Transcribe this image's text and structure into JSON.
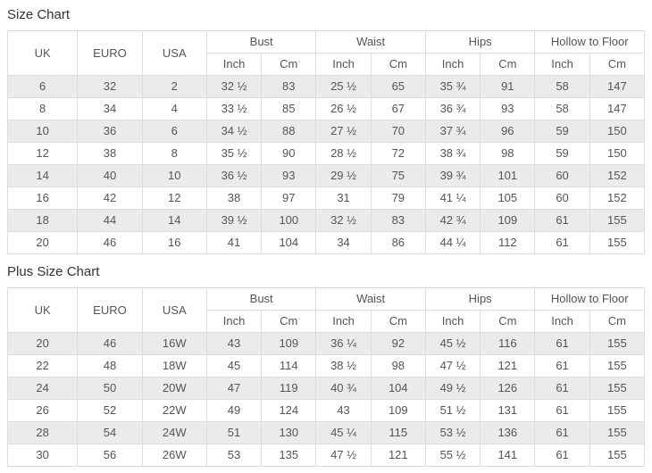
{
  "colors": {
    "background": "#ffffff",
    "row_stripe": "#ebebeb",
    "border": "#dddddd",
    "cell_text": "#555555",
    "title_text": "#333333"
  },
  "chart_data": [
    {
      "type": "table",
      "title": "Size Chart",
      "group_headers": [
        {
          "label": "UK",
          "colspan": 1,
          "rowspan": 2
        },
        {
          "label": "EURO",
          "colspan": 1,
          "rowspan": 2
        },
        {
          "label": "USA",
          "colspan": 1,
          "rowspan": 2
        },
        {
          "label": "Bust",
          "colspan": 2,
          "rowspan": 1
        },
        {
          "label": "Waist",
          "colspan": 2,
          "rowspan": 1
        },
        {
          "label": "Hips",
          "colspan": 2,
          "rowspan": 1
        },
        {
          "label": "Hollow to Floor",
          "colspan": 2,
          "rowspan": 1
        }
      ],
      "sub_headers": [
        "Inch",
        "Cm",
        "Inch",
        "Cm",
        "Inch",
        "Cm",
        "Inch",
        "Cm"
      ],
      "rows": [
        [
          "6",
          "32",
          "2",
          "32 ½",
          "83",
          "25 ½",
          "65",
          "35 ¾",
          "91",
          "58",
          "147"
        ],
        [
          "8",
          "34",
          "4",
          "33 ½",
          "85",
          "26 ½",
          "67",
          "36 ¾",
          "93",
          "58",
          "147"
        ],
        [
          "10",
          "36",
          "6",
          "34 ½",
          "88",
          "27 ½",
          "70",
          "37 ¾",
          "96",
          "59",
          "150"
        ],
        [
          "12",
          "38",
          "8",
          "35 ½",
          "90",
          "28 ½",
          "72",
          "38 ¾",
          "98",
          "59",
          "150"
        ],
        [
          "14",
          "40",
          "10",
          "36 ½",
          "93",
          "29 ½",
          "75",
          "39 ¾",
          "101",
          "60",
          "152"
        ],
        [
          "16",
          "42",
          "12",
          "38",
          "97",
          "31",
          "79",
          "41 ¼",
          "105",
          "60",
          "152"
        ],
        [
          "18",
          "44",
          "14",
          "39 ½",
          "100",
          "32 ½",
          "83",
          "42 ¾",
          "109",
          "61",
          "155"
        ],
        [
          "20",
          "46",
          "16",
          "41",
          "104",
          "34",
          "86",
          "44 ¼",
          "112",
          "61",
          "155"
        ]
      ]
    },
    {
      "type": "table",
      "title": "Plus Size Chart",
      "group_headers": [
        {
          "label": "UK",
          "colspan": 1,
          "rowspan": 2
        },
        {
          "label": "EURO",
          "colspan": 1,
          "rowspan": 2
        },
        {
          "label": "USA",
          "colspan": 1,
          "rowspan": 2
        },
        {
          "label": "Bust",
          "colspan": 2,
          "rowspan": 1
        },
        {
          "label": "Waist",
          "colspan": 2,
          "rowspan": 1
        },
        {
          "label": "Hips",
          "colspan": 2,
          "rowspan": 1
        },
        {
          "label": "Hollow to Floor",
          "colspan": 2,
          "rowspan": 1
        }
      ],
      "sub_headers": [
        "Inch",
        "Cm",
        "Inch",
        "Cm",
        "Inch",
        "Cm",
        "Inch",
        "Cm"
      ],
      "rows": [
        [
          "20",
          "46",
          "16W",
          "43",
          "109",
          "36 ¼",
          "92",
          "45 ½",
          "116",
          "61",
          "155"
        ],
        [
          "22",
          "48",
          "18W",
          "45",
          "114",
          "38 ½",
          "98",
          "47 ½",
          "121",
          "61",
          "155"
        ],
        [
          "24",
          "50",
          "20W",
          "47",
          "119",
          "40 ¾",
          "104",
          "49 ½",
          "126",
          "61",
          "155"
        ],
        [
          "26",
          "52",
          "22W",
          "49",
          "124",
          "43",
          "109",
          "51 ½",
          "131",
          "61",
          "155"
        ],
        [
          "28",
          "54",
          "24W",
          "51",
          "130",
          "45 ¼",
          "115",
          "53 ½",
          "136",
          "61",
          "155"
        ],
        [
          "30",
          "56",
          "26W",
          "53",
          "135",
          "47 ½",
          "121",
          "55 ½",
          "141",
          "61",
          "155"
        ]
      ]
    }
  ]
}
